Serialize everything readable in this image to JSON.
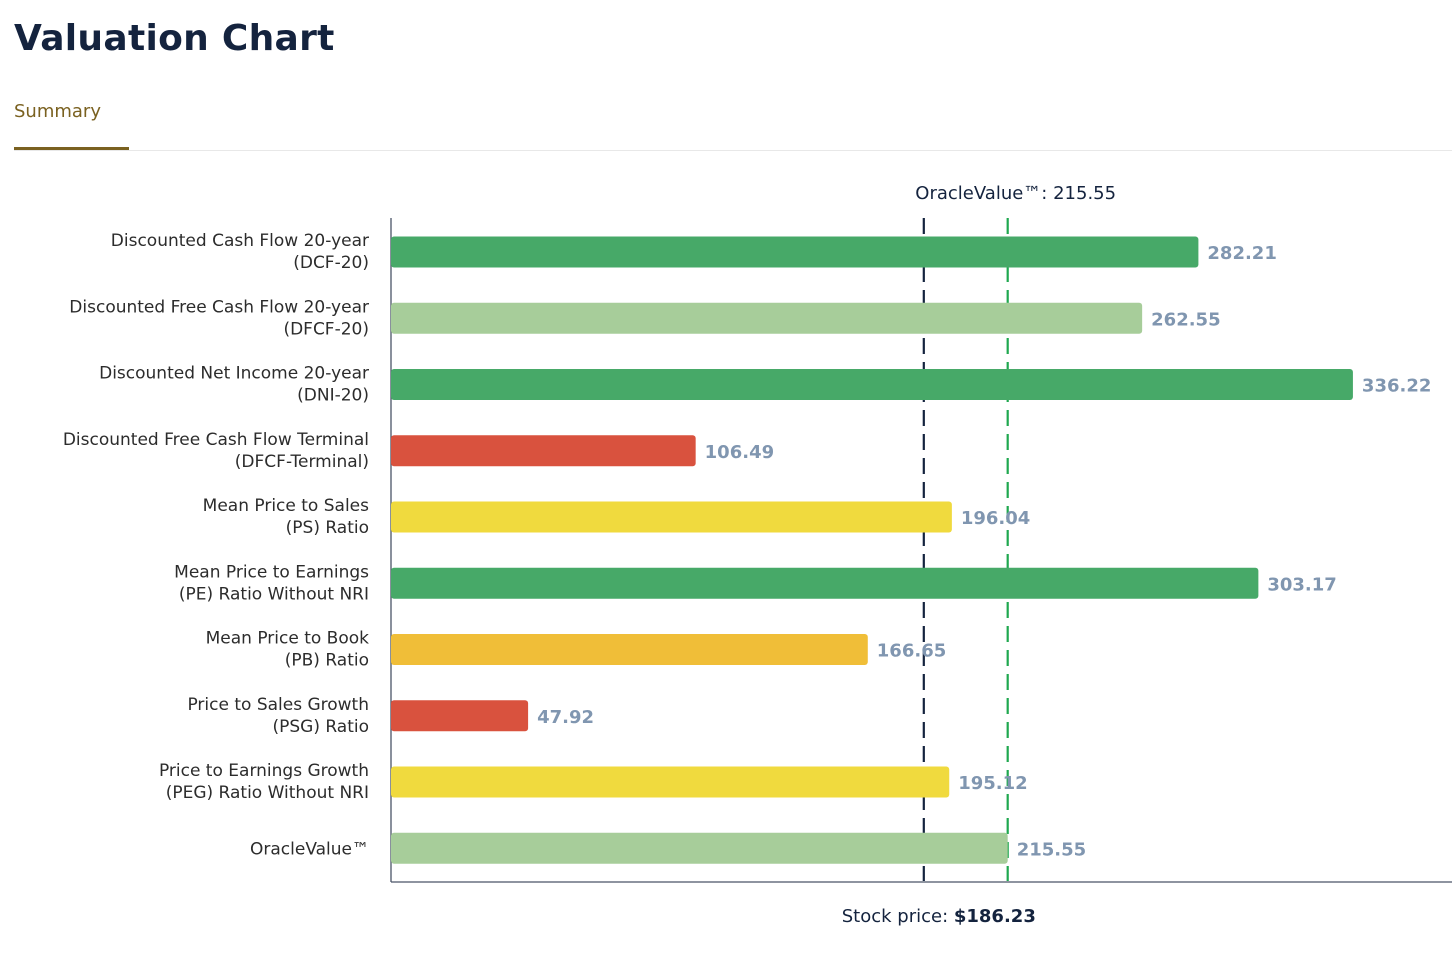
{
  "header": {
    "title": "Valuation Chart"
  },
  "tabs": [
    {
      "label": "Summary",
      "active": true
    }
  ],
  "chart_data": {
    "type": "bar",
    "orientation": "horizontal",
    "categories": [
      [
        "Discounted Cash Flow 20-year",
        "(DCF-20)"
      ],
      [
        "Discounted Free Cash Flow 20-year",
        "(DFCF-20)"
      ],
      [
        "Discounted Net Income 20-year",
        "(DNI-20)"
      ],
      [
        "Discounted Free Cash Flow Terminal",
        "(DFCF-Terminal)"
      ],
      [
        "Mean Price to Sales",
        "(PS) Ratio"
      ],
      [
        "Mean Price to Earnings",
        "(PE) Ratio Without NRI"
      ],
      [
        "Mean Price to Book",
        "(PB) Ratio"
      ],
      [
        "Price to Sales Growth",
        "(PSG) Ratio"
      ],
      [
        "Price to Earnings Growth",
        "(PEG) Ratio Without NRI"
      ],
      [
        "OracleValue™"
      ]
    ],
    "values": [
      282.21,
      262.55,
      336.22,
      106.49,
      196.04,
      303.17,
      166.65,
      47.92,
      195.12,
      215.55
    ],
    "value_labels": [
      "282.21",
      "262.55",
      "336.22",
      "106.49",
      "196.04",
      "303.17",
      "166.65",
      "47.92",
      "195.12",
      "215.55"
    ],
    "colors": [
      "#47a968",
      "#a7cd9a",
      "#47a968",
      "#d9523e",
      "#f0da3e",
      "#47a968",
      "#f0be38",
      "#d9523e",
      "#f0da3e",
      "#a7cd9a"
    ],
    "xlim": [
      0,
      370
    ],
    "grid": false,
    "reference_lines": [
      {
        "label": "Stock price:",
        "value_text": "$186.23",
        "value": 186.23,
        "color": "#14233e",
        "position": "bottom"
      },
      {
        "label": "OracleValue™:",
        "value_text": "215.55",
        "value": 215.55,
        "color": "#1fa84f",
        "position": "top"
      }
    ]
  }
}
